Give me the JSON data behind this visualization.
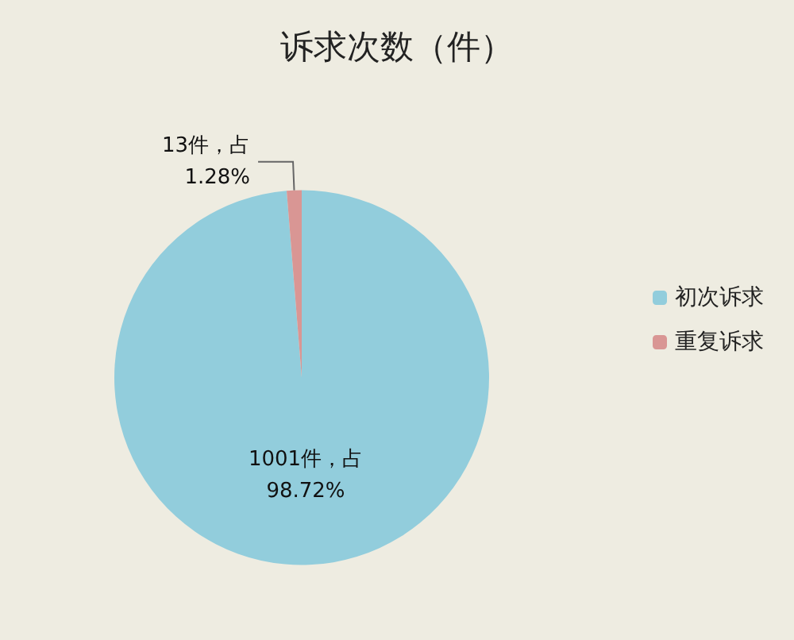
{
  "chart_data": {
    "type": "pie",
    "title": "诉求次数（件）",
    "categories": [
      "初次诉求",
      "重复诉求"
    ],
    "values": [
      1001,
      13
    ],
    "colors": [
      "#92cddc",
      "#d99694"
    ],
    "value_labels": [
      "1001件，占\n98.72%",
      "13件，占\n1.28%"
    ],
    "legend": "right"
  }
}
